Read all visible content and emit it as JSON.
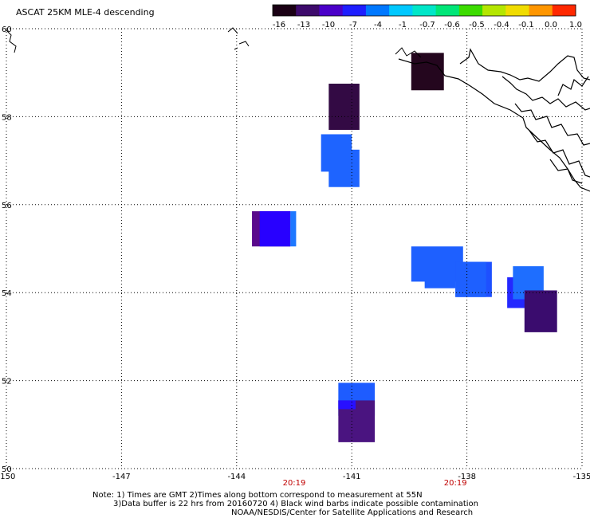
{
  "title": "ASCAT 25KM MLE-4 descending",
  "colorbar": {
    "labels": [
      "-16",
      "-13",
      "-10",
      "-7",
      "-4",
      "-1",
      "-0.7",
      "-0.6",
      "-0.5",
      "-0.4",
      "-0.1",
      "0.0",
      "1.0"
    ],
    "colors": [
      "#1a0014",
      "#3d0a6b",
      "#4a00c8",
      "#1e1eff",
      "#0078ff",
      "#00c8ff",
      "#00e6c8",
      "#00e678",
      "#3cdc00",
      "#b4e600",
      "#f0dc00",
      "#ff9600",
      "#ff2800"
    ]
  },
  "map": {
    "lon_range": [
      -150,
      -135
    ],
    "lat_range": [
      50,
      60
    ],
    "lon_ticks": [
      "-150",
      "-147",
      "-144",
      "-141",
      "-138",
      "-135"
    ],
    "lat_ticks": [
      "50",
      "52",
      "54",
      "56",
      "58",
      "60"
    ],
    "times": [
      {
        "label": "20:19",
        "lon": -142.5
      },
      {
        "label": "20:19",
        "lon": -138.3
      }
    ],
    "cells": [
      {
        "lon0": -139.45,
        "lon1": -138.6,
        "lat0": 58.6,
        "lat1": 59.45,
        "color": "#24061e"
      },
      {
        "lon0": -141.6,
        "lon1": -140.8,
        "lat0": 57.7,
        "lat1": 58.75,
        "color": "#330a44"
      },
      {
        "lon0": -141.8,
        "lon1": -141.0,
        "lat0": 56.75,
        "lat1": 57.6,
        "color": "#1e64ff"
      },
      {
        "lon0": -141.6,
        "lon1": -140.8,
        "lat0": 56.4,
        "lat1": 57.25,
        "color": "#1e64ff"
      },
      {
        "lon0": -143.6,
        "lon1": -142.6,
        "lat0": 55.05,
        "lat1": 55.85,
        "color": "#5a0a8c"
      },
      {
        "lon0": -143.4,
        "lon1": -142.6,
        "lat0": 55.05,
        "lat1": 55.85,
        "color": "#2800ff"
      },
      {
        "lon0": -142.6,
        "lon1": -142.45,
        "lat0": 55.05,
        "lat1": 55.85,
        "color": "#1e78ff"
      },
      {
        "lon0": -139.45,
        "lon1": -138.1,
        "lat0": 54.25,
        "lat1": 55.05,
        "color": "#1e60ff"
      },
      {
        "lon0": -139.1,
        "lon1": -138.3,
        "lat0": 54.1,
        "lat1": 54.5,
        "color": "#1e60ff"
      },
      {
        "lon0": -138.3,
        "lon1": -137.35,
        "lat0": 53.9,
        "lat1": 54.7,
        "color": "#1e50ff"
      },
      {
        "lon0": -138.3,
        "lon1": -137.5,
        "lat0": 53.9,
        "lat1": 54.7,
        "color": "#1e60ff"
      },
      {
        "lon0": -136.95,
        "lon1": -136.15,
        "lat0": 53.65,
        "lat1": 54.35,
        "color": "#2428ff"
      },
      {
        "lon0": -136.8,
        "lon1": -136.0,
        "lat0": 53.85,
        "lat1": 54.6,
        "color": "#1e6eff"
      },
      {
        "lon0": -136.5,
        "lon1": -135.65,
        "lat0": 53.1,
        "lat1": 54.05,
        "color": "#3a0c6e"
      },
      {
        "lon0": -141.35,
        "lon1": -140.4,
        "lat0": 51.2,
        "lat1": 51.95,
        "color": "#1e5cff"
      },
      {
        "lon0": -141.35,
        "lon1": -140.4,
        "lat0": 50.6,
        "lat1": 51.55,
        "color": "#4a1480"
      },
      {
        "lon0": -141.35,
        "lon1": -140.9,
        "lat0": 51.35,
        "lat1": 51.55,
        "color": "#2810ff"
      }
    ]
  },
  "notes": {
    "line1": "Note: 1) Times are GMT 2)Times along bottom correspond to measurement at 55N",
    "line2": "3)Data buffer is 22 hrs from 20160720 4) Black wind barbs indicate possible contamination",
    "line3": "NOAA/NESDIS/Center for Satellite Applications and Research"
  }
}
